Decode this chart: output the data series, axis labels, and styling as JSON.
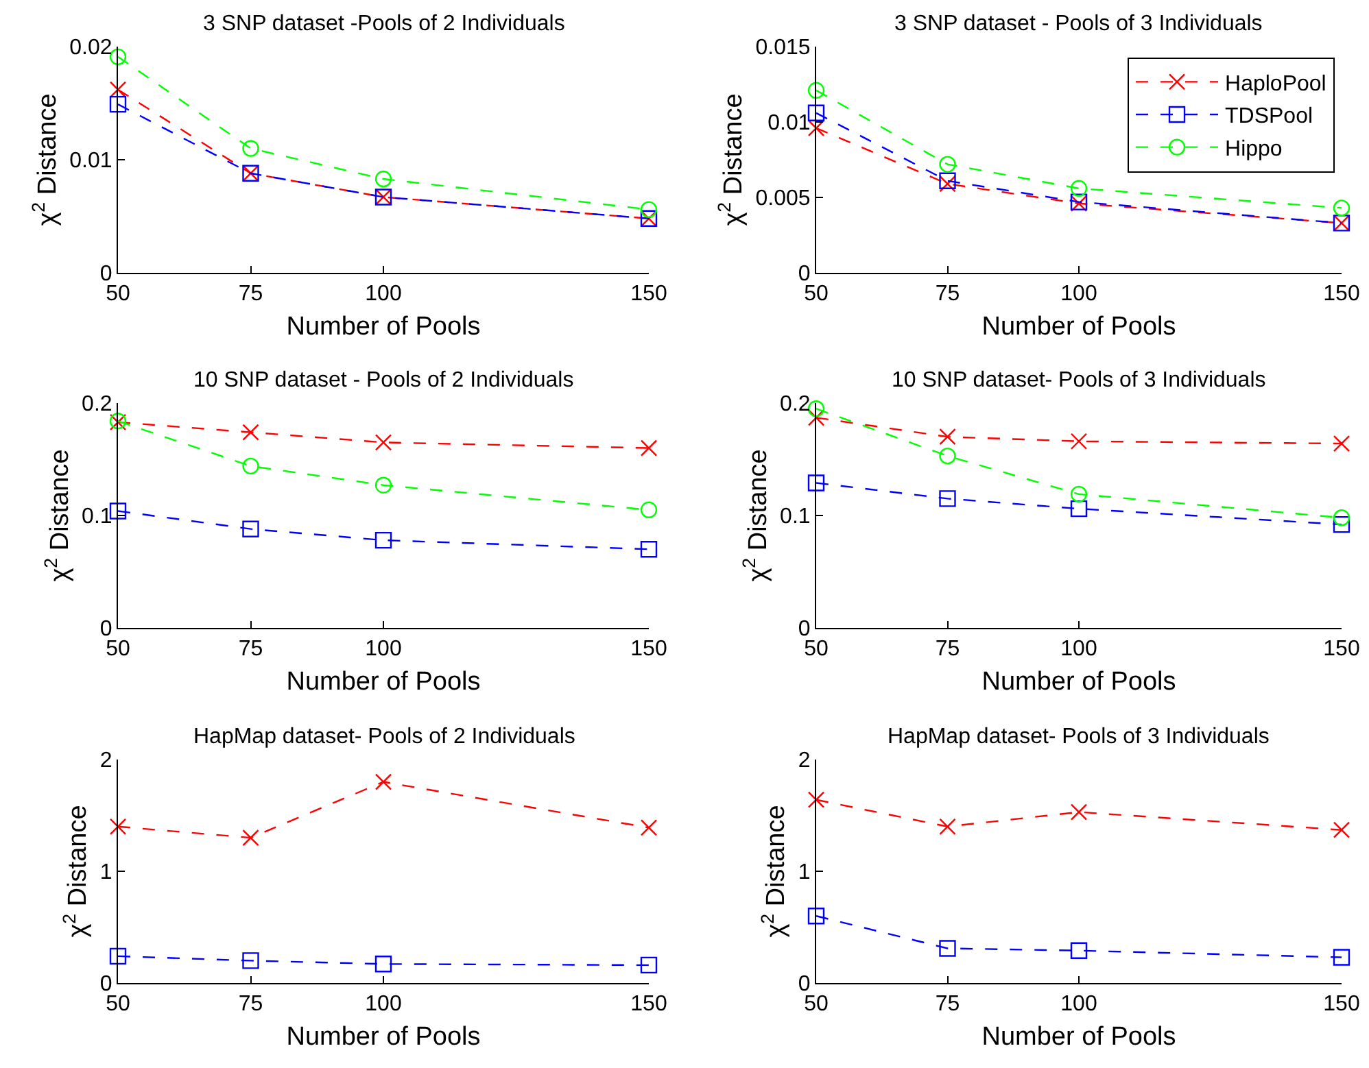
{
  "chart_data": [
    {
      "type": "line",
      "title": "3 SNP dataset -Pools of 2 Individuals",
      "xlabel": "Number of Pools",
      "ylabel": "χ$^{2}$ Distance",
      "x": [
        50,
        75,
        100,
        150
      ],
      "xlim": [
        50,
        150
      ],
      "xticks": [
        50,
        75,
        100,
        150
      ],
      "ylim": [
        0,
        0.02
      ],
      "yticks": [
        0,
        0.01,
        0.02
      ],
      "legend": false,
      "line_style": "dashed",
      "series": [
        {
          "color": "#ff0000",
          "marker": "cross",
          "values": [
            0.0162,
            0.0088,
            0.0067,
            0.0048
          ]
        },
        {
          "color": "#0000ff",
          "marker": "square",
          "values": [
            0.0149,
            0.0088,
            0.0067,
            0.0048
          ]
        },
        {
          "color": "#00ff00",
          "marker": "circle",
          "values": [
            0.0191,
            0.011,
            0.0083,
            0.0056
          ]
        }
      ]
    },
    {
      "type": "line",
      "title": "3 SNP dataset - Pools of 3 Individuals",
      "xlabel": "Number of Pools",
      "ylabel": "χ$^{2}$ Distance",
      "x": [
        50,
        75,
        100,
        150
      ],
      "xlim": [
        50,
        150
      ],
      "xticks": [
        50,
        75,
        100,
        150
      ],
      "ylim": [
        0,
        0.015
      ],
      "yticks": [
        0,
        0.005,
        0.01,
        0.015
      ],
      "legend": "top right",
      "line_style": "dashed",
      "series": [
        {
          "name": "HaploPool",
          "color": "#ff0000",
          "marker": "cross",
          "values": [
            0.0096,
            0.0059,
            0.0046,
            0.0033
          ]
        },
        {
          "name": "TDSPool",
          "color": "#0000ff",
          "marker": "square",
          "values": [
            0.0106,
            0.0061,
            0.0047,
            0.0033
          ]
        },
        {
          "name": "Hippo",
          "color": "#00ff00",
          "marker": "circle",
          "values": [
            0.0121,
            0.0072,
            0.0056,
            0.0043
          ]
        }
      ]
    },
    {
      "type": "line",
      "title": "10 SNP dataset - Pools of 2 Individuals",
      "xlabel": "Number of Pools",
      "ylabel": "χ$^{2}$ Distance",
      "x": [
        50,
        75,
        100,
        150
      ],
      "xlim": [
        50,
        150
      ],
      "xticks": [
        50,
        75,
        100,
        150
      ],
      "ylim": [
        0,
        0.2
      ],
      "yticks": [
        0,
        0.1,
        0.2
      ],
      "legend": false,
      "line_style": "dashed",
      "series": [
        {
          "color": "#ff0000",
          "marker": "cross",
          "values": [
            0.183,
            0.174,
            0.165,
            0.16
          ]
        },
        {
          "color": "#0000ff",
          "marker": "square",
          "values": [
            0.104,
            0.088,
            0.078,
            0.07
          ]
        },
        {
          "color": "#00ff00",
          "marker": "circle",
          "values": [
            0.184,
            0.144,
            0.127,
            0.105
          ]
        }
      ]
    },
    {
      "type": "line",
      "title": "10 SNP dataset- Pools of 3 Individuals",
      "xlabel": "Number of Pools",
      "ylabel": "χ$^{2}$ Distance",
      "x": [
        50,
        75,
        100,
        150
      ],
      "xlim": [
        50,
        150
      ],
      "xticks": [
        50,
        75,
        100,
        150
      ],
      "ylim": [
        0,
        0.2
      ],
      "yticks": [
        0,
        0.1,
        0.2
      ],
      "legend": false,
      "line_style": "dashed",
      "series": [
        {
          "color": "#ff0000",
          "marker": "cross",
          "values": [
            0.187,
            0.17,
            0.166,
            0.164
          ]
        },
        {
          "color": "#0000ff",
          "marker": "square",
          "values": [
            0.129,
            0.115,
            0.106,
            0.092
          ]
        },
        {
          "color": "#00ff00",
          "marker": "circle",
          "values": [
            0.195,
            0.153,
            0.119,
            0.098
          ]
        }
      ]
    },
    {
      "type": "line",
      "title": "HapMap dataset- Pools of 2 Individuals",
      "xlabel": "Number of Pools",
      "ylabel": "χ$^{2}$ Distance",
      "x": [
        50,
        75,
        100,
        150
      ],
      "xlim": [
        50,
        150
      ],
      "xticks": [
        50,
        75,
        100,
        150
      ],
      "ylim": [
        0,
        2
      ],
      "yticks": [
        0,
        1,
        2
      ],
      "legend": false,
      "line_style": "dashed",
      "series": [
        {
          "color": "#ff0000",
          "marker": "cross",
          "values": [
            1.4,
            1.3,
            1.8,
            1.39
          ]
        },
        {
          "color": "#0000ff",
          "marker": "square",
          "values": [
            0.24,
            0.2,
            0.17,
            0.16
          ]
        }
      ]
    },
    {
      "type": "line",
      "title": "HapMap dataset- Pools of 3 Individuals",
      "xlabel": "Number of Pools",
      "ylabel": "χ$^{2}$ Distance",
      "x": [
        50,
        75,
        100,
        150
      ],
      "xlim": [
        50,
        150
      ],
      "xticks": [
        50,
        75,
        100,
        150
      ],
      "ylim": [
        0,
        2
      ],
      "yticks": [
        0,
        1,
        2
      ],
      "legend": false,
      "line_style": "dashed",
      "series": [
        {
          "color": "#ff0000",
          "marker": "cross",
          "values": [
            1.64,
            1.4,
            1.53,
            1.37
          ]
        },
        {
          "color": "#0000ff",
          "marker": "square",
          "values": [
            0.6,
            0.31,
            0.29,
            0.23
          ]
        }
      ]
    }
  ]
}
